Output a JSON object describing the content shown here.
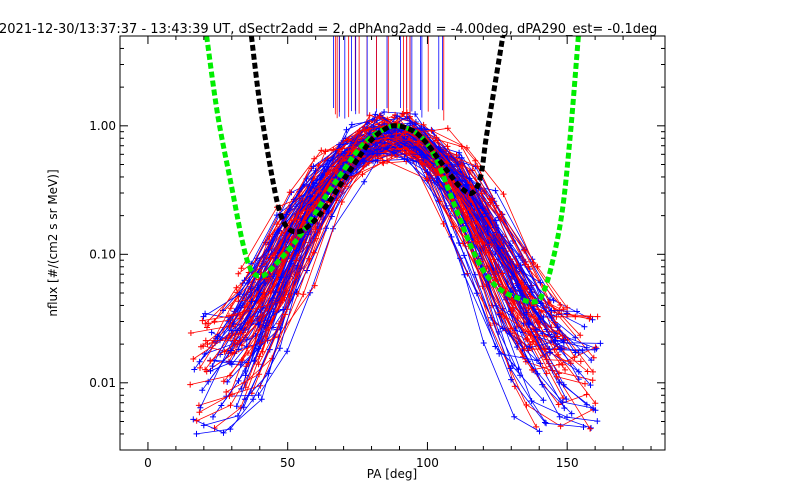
{
  "chart_data": {
    "type": "line",
    "title": "2021-12-30/13:37:37 - 13:43:39 UT, dSectr2add = 2, dPhAng2add = -4.00deg, dPA290_est=  -0.1deg",
    "xlabel": "PA [deg]",
    "ylabel": "nflux [#/(cm2 s sr MeV)]",
    "xlim": [
      -10,
      185
    ],
    "ylim": [
      0.003,
      5
    ],
    "yscale": "log",
    "x_ticks": [
      0,
      50,
      100,
      150
    ],
    "x_tick_labels": [
      "0",
      "50",
      "100",
      "150"
    ],
    "y_ticks": [
      0.01,
      0.1,
      1.0
    ],
    "y_tick_labels": [
      "0.01",
      "0.10",
      "1.00"
    ],
    "grid": false,
    "colors": {
      "red": "#ff0000",
      "blue": "#0000ff",
      "green": "#00ee00",
      "black": "#000000"
    },
    "series": [
      {
        "color": "#00ee00",
        "style": "thick-dashed",
        "x": [
          21,
          25,
          30,
          34,
          37,
          41,
          46,
          52,
          58,
          64,
          70,
          75,
          80,
          85,
          88,
          92,
          96,
          100,
          104,
          108,
          112,
          116,
          120,
          124,
          128,
          132,
          136,
          139,
          141,
          144,
          148,
          151,
          154
        ],
        "y": [
          5.0,
          1.2,
          0.33,
          0.12,
          0.075,
          0.068,
          0.085,
          0.12,
          0.18,
          0.29,
          0.45,
          0.64,
          0.82,
          0.95,
          1.0,
          0.97,
          0.88,
          0.72,
          0.5,
          0.3,
          0.18,
          0.11,
          0.075,
          0.058,
          0.05,
          0.046,
          0.043,
          0.043,
          0.048,
          0.075,
          0.2,
          0.8,
          5.0
        ]
      },
      {
        "color": "#000000",
        "style": "thick-dashed",
        "x": [
          37,
          40,
          44,
          47,
          50,
          54,
          58,
          62,
          66,
          70,
          75,
          80,
          85,
          88,
          92,
          96,
          100,
          104,
          108,
          112,
          116,
          119,
          121,
          124,
          127
        ],
        "y": [
          5.0,
          1.5,
          0.45,
          0.22,
          0.16,
          0.15,
          0.17,
          0.21,
          0.28,
          0.38,
          0.55,
          0.78,
          0.95,
          1.0,
          0.97,
          0.88,
          0.72,
          0.55,
          0.42,
          0.33,
          0.3,
          0.4,
          0.8,
          2.0,
          5.0
        ]
      }
    ],
    "scatter_lines": {
      "red_profiles": 60,
      "blue_profiles": 60,
      "marker": "+",
      "peak_pa": 88,
      "left_start_pa_range": [
        16,
        42
      ],
      "right_end_pa_range": [
        130,
        162
      ],
      "flux_floor_range": [
        0.004,
        0.03
      ]
    }
  }
}
